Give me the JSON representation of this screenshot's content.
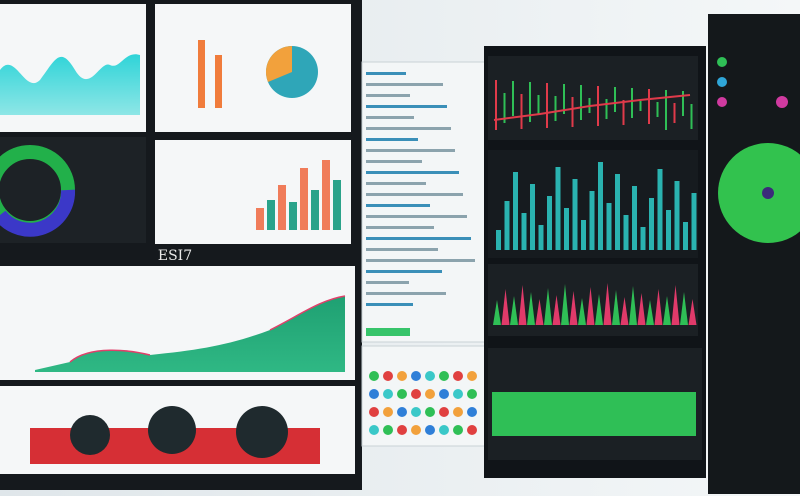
{
  "screen_label": "ESI7"
}
